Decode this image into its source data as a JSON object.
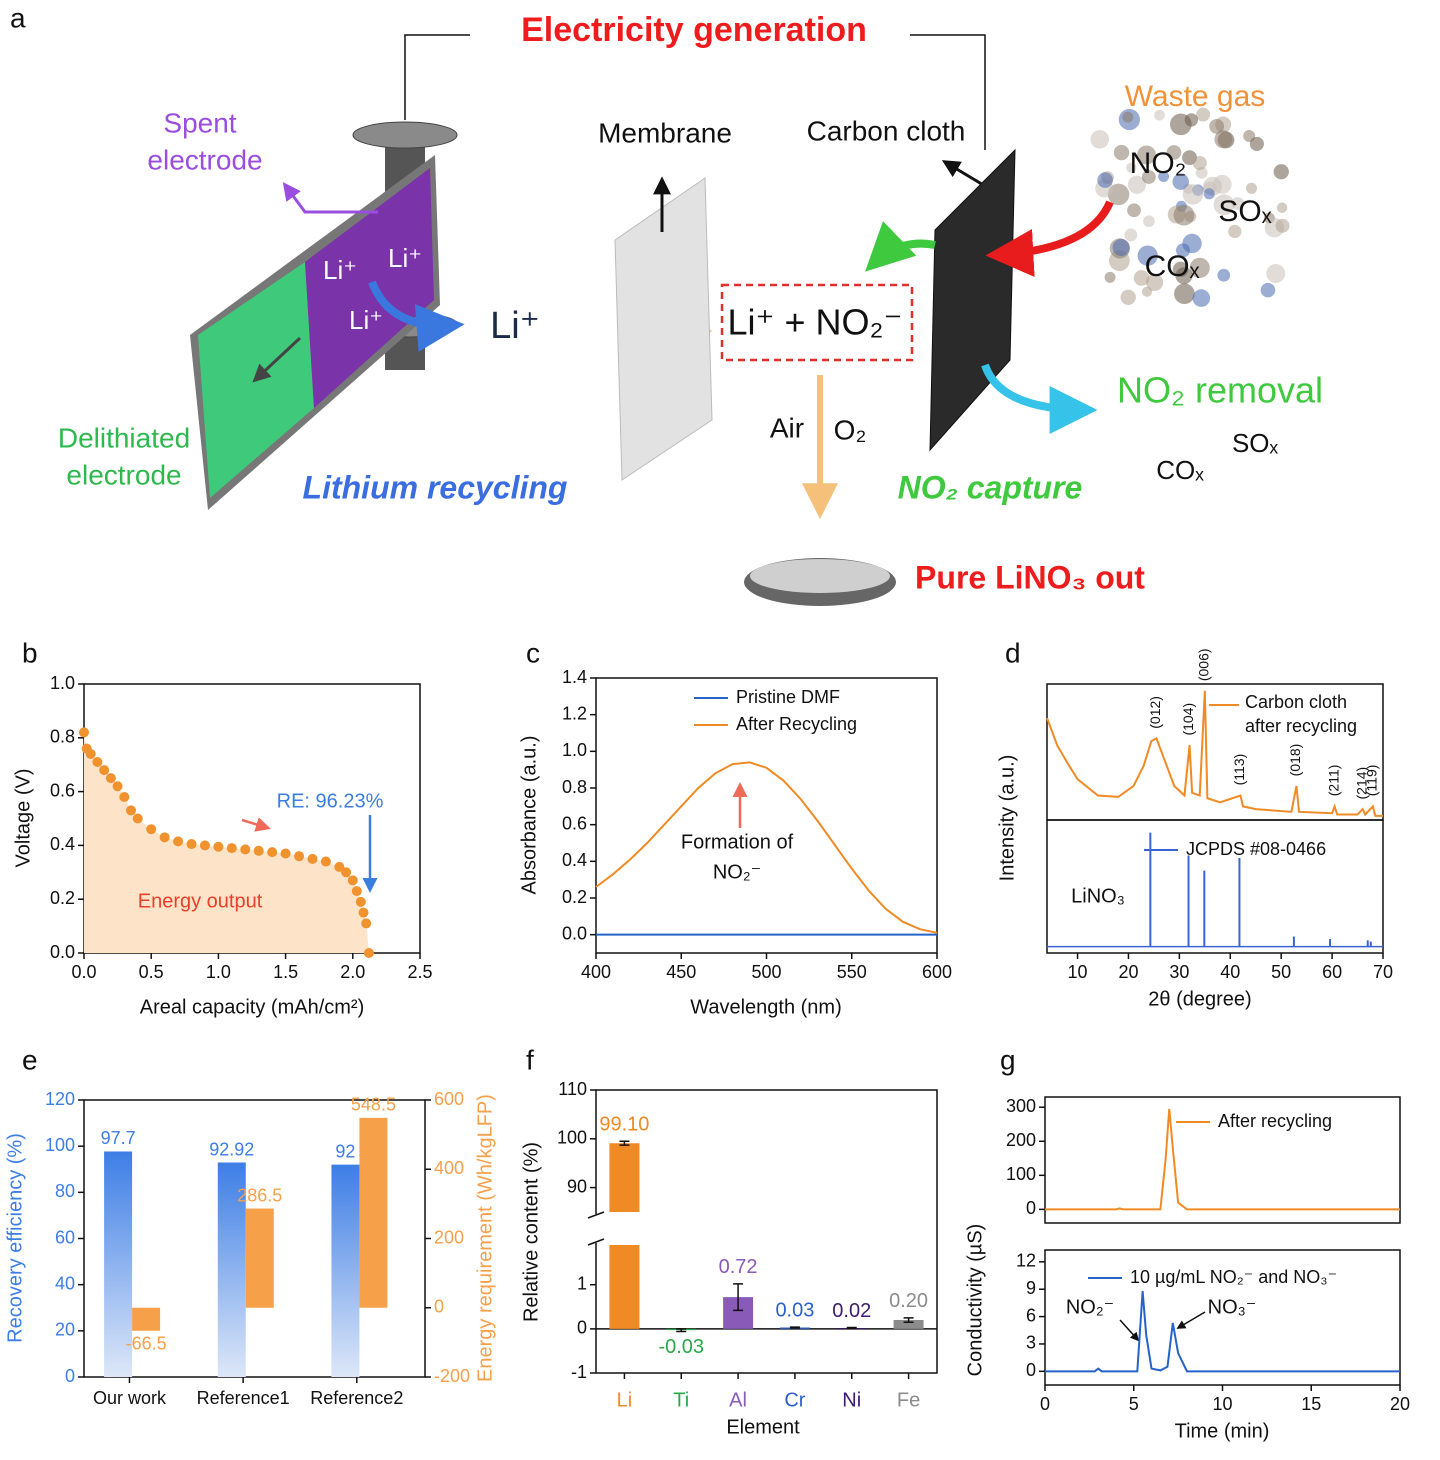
{
  "diagram": {
    "label": "a",
    "title": "Electricity generation",
    "spent": "Spent",
    "spent2": "electrode",
    "li1": "Li⁺",
    "li2": "Li⁺",
    "li3": "Li⁺",
    "li_flow": "Li⁺",
    "membrane": "Membrane",
    "carbon": "Carbon cloth",
    "waste": "Waste gas",
    "gas_no2": "NO₂",
    "gas_sox": "SOₓ",
    "gas_cox": "COₓ",
    "product": "Li⁺ + NO₂⁻",
    "removal": "NO₂ removal",
    "out_sox": "SOₓ",
    "out_cox": "COₓ",
    "air": "Air",
    "o2": "O₂",
    "delith": "Delithiated",
    "delith2": "electrode",
    "lithium": "Lithium recycling",
    "capture": "NO₂ capture",
    "pure": "Pure LiNO₃ out"
  },
  "chart_data": [
    {
      "panel": "b",
      "type": "scatter",
      "x": [
        0,
        0.02,
        0.05,
        0.1,
        0.15,
        0.2,
        0.25,
        0.3,
        0.35,
        0.4,
        0.5,
        0.6,
        0.7,
        0.8,
        0.9,
        1.0,
        1.1,
        1.2,
        1.3,
        1.4,
        1.5,
        1.6,
        1.7,
        1.8,
        1.9,
        1.95,
        2.0,
        2.03,
        2.06,
        2.08,
        2.1,
        2.12
      ],
      "values": [
        0.82,
        0.76,
        0.74,
        0.71,
        0.68,
        0.65,
        0.62,
        0.58,
        0.53,
        0.5,
        0.46,
        0.43,
        0.415,
        0.405,
        0.4,
        0.395,
        0.39,
        0.385,
        0.38,
        0.375,
        0.37,
        0.36,
        0.35,
        0.34,
        0.32,
        0.3,
        0.27,
        0.23,
        0.19,
        0.15,
        0.11,
        0.0
      ],
      "color": "#f0922e",
      "fill": "#fde3c8",
      "xlim": [
        0,
        2.5
      ],
      "xticks": [
        {
          "value": 0,
          "label": "0.0"
        },
        {
          "value": 0.5,
          "label": "0.5"
        },
        {
          "value": 1,
          "label": "1.0"
        },
        {
          "value": 1.5,
          "label": "1.5"
        },
        {
          "value": 2,
          "label": "2.0"
        },
        {
          "value": 2.5,
          "label": "2.5"
        }
      ],
      "ylim": [
        0,
        1
      ],
      "yticks": [
        {
          "value": 0,
          "label": "0.0"
        },
        {
          "value": 0.2,
          "label": "0.2"
        },
        {
          "value": 0.4,
          "label": "0.4"
        },
        {
          "value": 0.6,
          "label": "0.6"
        },
        {
          "value": 0.8,
          "label": "0.8"
        },
        {
          "value": 1,
          "label": "1.0"
        }
      ],
      "xlabel": "Areal capacity (mAh/cm²)",
      "ylabel": "Voltage (V)",
      "annotations": [
        "RE: 96.23%",
        "Energy output"
      ]
    },
    {
      "panel": "c",
      "type": "line",
      "x": [
        400,
        410,
        420,
        430,
        440,
        450,
        460,
        470,
        480,
        490,
        500,
        510,
        520,
        530,
        540,
        550,
        560,
        570,
        580,
        590,
        600
      ],
      "series": [
        {
          "name": "Pristine DMF",
          "color": "#2563c9",
          "values": [
            0,
            0,
            0,
            0,
            0,
            0,
            0,
            0,
            0,
            0,
            0,
            0,
            0,
            0,
            0,
            0,
            0,
            0,
            0,
            0,
            0
          ]
        },
        {
          "name": "After Recycling",
          "color": "#f08a24",
          "values": [
            0.26,
            0.33,
            0.41,
            0.5,
            0.6,
            0.7,
            0.8,
            0.88,
            0.93,
            0.94,
            0.91,
            0.84,
            0.74,
            0.62,
            0.49,
            0.36,
            0.24,
            0.14,
            0.07,
            0.03,
            0.01
          ]
        }
      ],
      "xlim": [
        400,
        600
      ],
      "xticks": [
        400,
        450,
        500,
        550,
        600
      ],
      "ylim": [
        -0.1,
        1.4
      ],
      "yticks": [
        {
          "value": 0,
          "label": "0.0"
        },
        {
          "value": 0.2,
          "label": "0.2"
        },
        {
          "value": 0.4,
          "label": "0.4"
        },
        {
          "value": 0.6,
          "label": "0.6"
        },
        {
          "value": 0.8,
          "label": "0.8"
        },
        {
          "value": 1,
          "label": "1.0"
        },
        {
          "value": 1.2,
          "label": "1.2"
        },
        {
          "value": 1.4,
          "label": "1.4"
        }
      ],
      "xlabel": "Wavelength (nm)",
      "ylabel": "Absorbance (a.u.)",
      "annotations": [
        "Formation of",
        "NO₂⁻"
      ]
    },
    {
      "panel": "d",
      "type": "line",
      "x": [
        4,
        6,
        8,
        10,
        14,
        18,
        21,
        23,
        24.5,
        25.5,
        27,
        29,
        31,
        32,
        32.5,
        34,
        35,
        35.5,
        38,
        42,
        42.5,
        45,
        52,
        53,
        53.5,
        60,
        60.5,
        61,
        65,
        66,
        66.5,
        68,
        68.5,
        70
      ],
      "series": [
        {
          "name": "Carbon cloth after recycling",
          "color": "#f08a24",
          "values": [
            0.75,
            0.55,
            0.42,
            0.3,
            0.18,
            0.17,
            0.25,
            0.4,
            0.58,
            0.6,
            0.45,
            0.25,
            0.18,
            0.55,
            0.2,
            0.18,
            0.95,
            0.16,
            0.13,
            0.18,
            0.1,
            0.08,
            0.06,
            0.25,
            0.06,
            0.05,
            0.1,
            0.04,
            0.04,
            0.08,
            0.04,
            0.1,
            0.03,
            0.03
          ]
        }
      ],
      "xlim": [
        4,
        70
      ],
      "ylim": [
        0,
        1
      ],
      "ylabel": "Intensity (a.u.)",
      "peaks": [
        {
          "label": "(012)",
          "x": 25.5
        },
        {
          "label": "(104)",
          "x": 32
        },
        {
          "label": "(006)",
          "x": 35
        },
        {
          "label": "(113)",
          "x": 42
        },
        {
          "label": "(018)",
          "x": 53
        },
        {
          "label": "(211)",
          "x": 60.5
        },
        {
          "label": "(214)",
          "x": 66
        },
        {
          "label": "(119)",
          "x": 68
        }
      ]
    },
    {
      "type": "stem",
      "x": [
        24.3,
        31.8,
        34.9,
        41.8,
        52.5,
        59.6,
        67,
        67.6
      ],
      "series": [
        {
          "name": "JCPDS #08-0466",
          "color": "#3b63d6",
          "values": [
            0.9,
            0.72,
            0.6,
            0.7,
            0.08,
            0.06,
            0.05,
            0.04
          ]
        }
      ],
      "xlim": [
        4,
        70
      ],
      "xticks": [
        10,
        20,
        30,
        40,
        50,
        60,
        70
      ],
      "ylim": [
        -0.05,
        1
      ],
      "xlabel": "2θ (degree)",
      "annotations": [
        "LiNO₃"
      ]
    },
    {
      "panel": "e",
      "type": "bar",
      "categories": [
        "Our work",
        "Reference1",
        "Reference2"
      ],
      "series": [
        {
          "color": "#3d7ee6",
          "values": [
            97.7,
            92.92,
            92
          ]
        },
        {
          "color": "#f7a04a",
          "axis": "y2",
          "values": [
            -66.5,
            286.5,
            548.5
          ]
        }
      ],
      "ylim": [
        0,
        120
      ],
      "yticks": [
        0,
        20,
        40,
        60,
        80,
        100,
        120
      ],
      "y2lim": [
        -200,
        600
      ],
      "y2ticks": [
        -200,
        0,
        200,
        400,
        600
      ],
      "ylabel": "Recovery efficiency (%)",
      "y2label": "Energy requirement (Wh/kgLFP)"
    },
    {
      "panel": "f",
      "type": "broken_bar",
      "categories": [
        "Li",
        "Ti",
        "Al",
        "Cr",
        "Ni",
        "Fe"
      ],
      "values": [
        99.1,
        -0.03,
        0.72,
        0.03,
        0.02,
        0.2
      ],
      "value_labels": [
        "99.10",
        "-0.03",
        "0.72",
        "0.03",
        "0.02",
        "0.20"
      ],
      "errors": [
        0.4,
        0.03,
        0.3,
        0.01,
        0.01,
        0.05
      ],
      "colors": [
        "#f08a24",
        "#2aa84a",
        "#8a5ab8",
        "#2b5fd0",
        "#3d1a6e",
        "#8c8c8c"
      ],
      "ylim": [
        -1,
        1.9
      ],
      "yticks": [
        -1,
        0,
        1
      ],
      "ylim_upper": [
        85,
        110
      ],
      "yticks_upper": [
        90,
        100,
        110
      ],
      "xlabel": "Element",
      "ylabel": "Relative content (%)"
    },
    {
      "panel": "g",
      "type": "line",
      "x": [
        0,
        4,
        4.2,
        4.4,
        6.5,
        6.8,
        7,
        7.2,
        7.5,
        8,
        20
      ],
      "series": [
        {
          "name": "After recycling",
          "color": "#f08a24",
          "values": [
            0,
            0,
            3,
            0,
            0,
            150,
            295,
            180,
            20,
            0,
            0
          ]
        }
      ],
      "xlim": [
        0,
        20
      ],
      "ylim": [
        -40,
        330
      ],
      "yticks": [
        0,
        100,
        200,
        300
      ],
      "ylabel": "Conductivity (µS)"
    },
    {
      "type": "line",
      "x": [
        0,
        2.8,
        3,
        3.2,
        5.2,
        5.5,
        5.7,
        6,
        6.5,
        6.9,
        7.2,
        7.5,
        8,
        20
      ],
      "series": [
        {
          "name": "10 µg/mL NO₂⁻ and NO₃⁻",
          "color": "#2563c9",
          "values": [
            0,
            0,
            0.3,
            0,
            0,
            8.8,
            4,
            0.3,
            0.1,
            0.5,
            5.3,
            2,
            0,
            0
          ]
        }
      ],
      "xlim": [
        0,
        20
      ],
      "xticks": [
        0,
        5,
        10,
        15,
        20
      ],
      "ylim": [
        -1.5,
        13.3
      ],
      "yticks": [
        0,
        3,
        6,
        9,
        12
      ],
      "xlabel": "Time (min)",
      "annotations": [
        "NO₂⁻",
        "NO₃⁻"
      ]
    }
  ]
}
